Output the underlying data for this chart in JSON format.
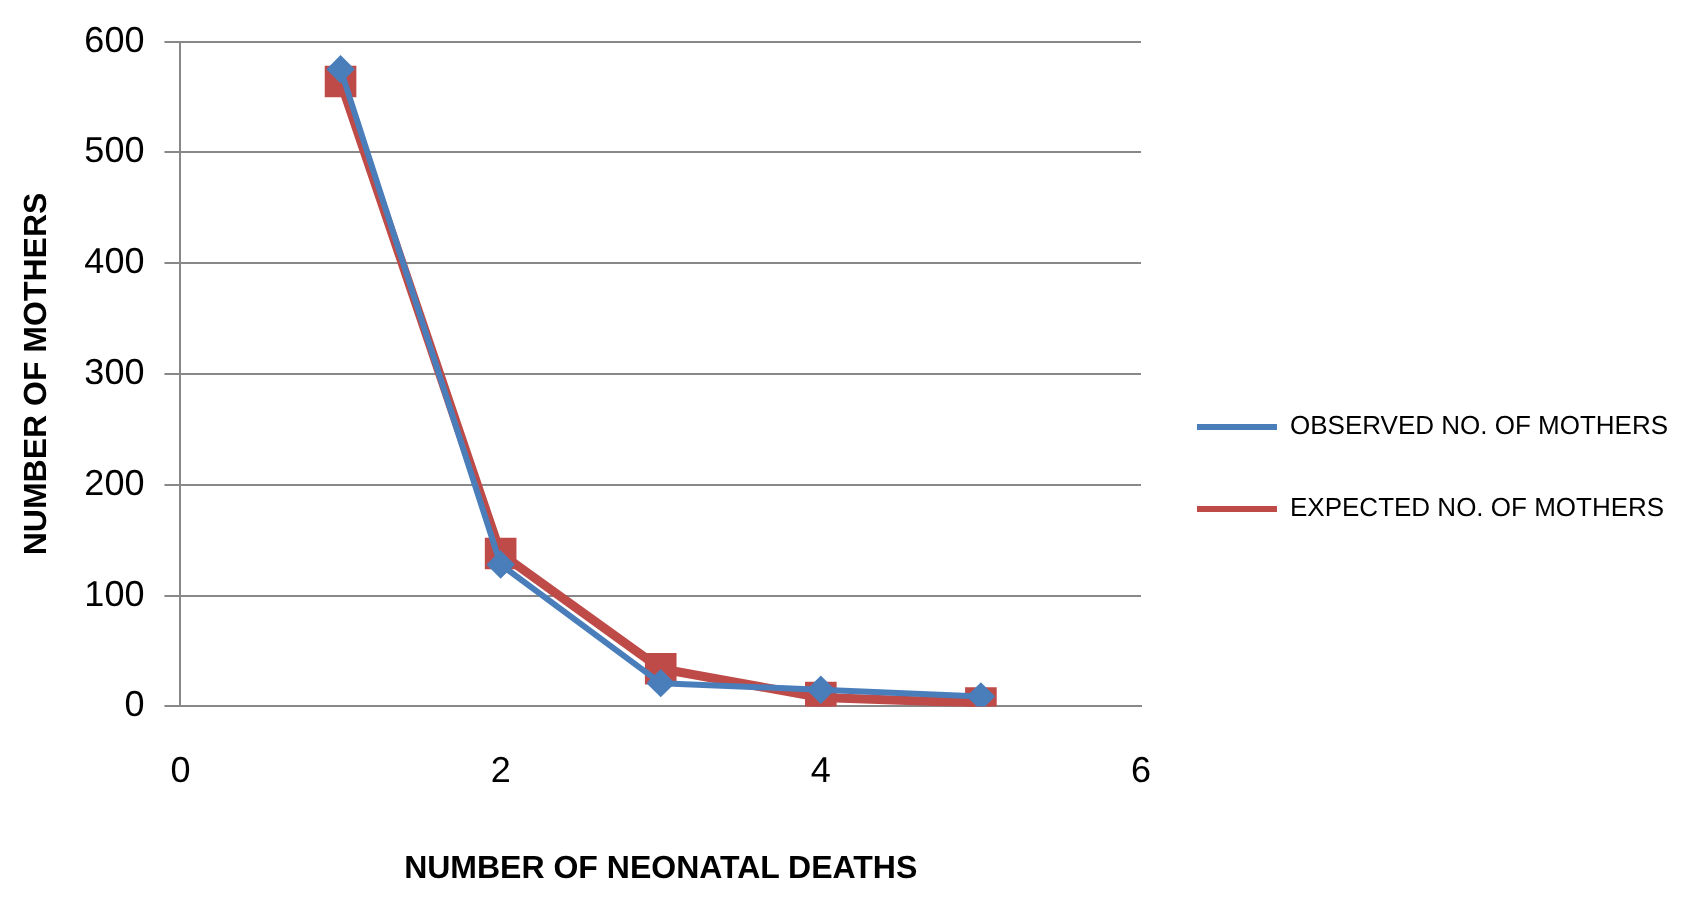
{
  "chart_data": {
    "type": "line",
    "xlabel": "NUMBER OF NEONATAL DEATHS",
    "ylabel": "NUMBER OF MOTHERS",
    "x": [
      1,
      2,
      3,
      4,
      5
    ],
    "series": [
      {
        "name": "OBSERVED NO. OF MOTHERS",
        "color": "#4a7ebb",
        "marker": "diamond",
        "values": [
          575,
          128,
          21,
          15,
          9
        ]
      },
      {
        "name": "EXPECTED NO. OF MOTHERS",
        "color": "#be4b48",
        "marker": "square",
        "values": [
          564,
          138,
          34,
          8,
          3
        ]
      }
    ],
    "xlim": [
      0,
      6
    ],
    "xticks": [
      0,
      2,
      4,
      6
    ],
    "ylim": [
      0,
      600
    ],
    "yticks": [
      0,
      100,
      200,
      300,
      400,
      500,
      600
    ],
    "grid": "y",
    "legend": "right"
  }
}
